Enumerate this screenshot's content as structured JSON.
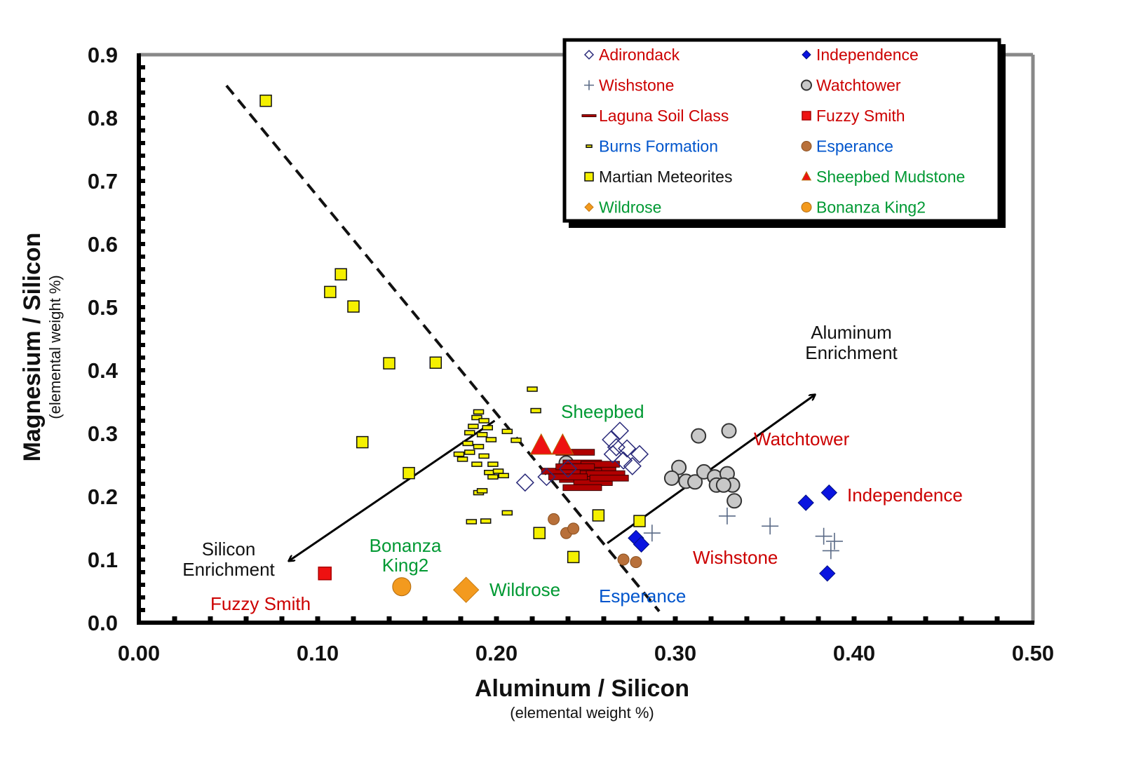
{
  "chart_data": {
    "type": "scatter",
    "xlabel": "Aluminum / Silicon",
    "xlabel_sub": "(elemental weight %)",
    "ylabel": "Magnesium / Silicon",
    "ylabel_sub": "(elemental weight %)",
    "xlim": [
      0,
      0.5
    ],
    "ylim": [
      0,
      0.9
    ],
    "x_ticks": [
      "0.00",
      "0.10",
      "0.20",
      "0.30",
      "0.40",
      "0.50"
    ],
    "y_ticks": [
      "0.0",
      "0.1",
      "0.2",
      "0.3",
      "0.4",
      "0.5",
      "0.6",
      "0.7",
      "0.8",
      "0.9"
    ],
    "minor_tick_step": 0.02,
    "grid": false,
    "legend_position": "top-right",
    "series": [
      {
        "name": "Adirondack",
        "marker": "diamond-open",
        "color": "#2a2a7a",
        "label_color": "#cc0000",
        "points": [
          [
            0.216,
            0.222
          ],
          [
            0.228,
            0.231
          ],
          [
            0.24,
            0.244
          ],
          [
            0.264,
            0.29
          ],
          [
            0.269,
            0.304
          ],
          [
            0.265,
            0.267
          ],
          [
            0.271,
            0.257
          ],
          [
            0.276,
            0.248
          ],
          [
            0.28,
            0.267
          ],
          [
            0.267,
            0.278
          ],
          [
            0.273,
            0.276
          ]
        ]
      },
      {
        "name": "Independence",
        "marker": "diamond",
        "color": "#0a14e0",
        "label_color": "#cc0000",
        "points": [
          [
            0.386,
            0.206
          ],
          [
            0.373,
            0.19
          ],
          [
            0.385,
            0.078
          ],
          [
            0.278,
            0.134
          ],
          [
            0.281,
            0.124
          ]
        ]
      },
      {
        "name": "Wishstone",
        "marker": "plus",
        "color": "#5a6a86",
        "label_color": "#cc0000",
        "points": [
          [
            0.287,
            0.142
          ],
          [
            0.329,
            0.169
          ],
          [
            0.353,
            0.153
          ],
          [
            0.383,
            0.137
          ],
          [
            0.389,
            0.129
          ],
          [
            0.387,
            0.114
          ]
        ]
      },
      {
        "name": "Watchtower",
        "marker": "circle",
        "color": "#c8c8c8",
        "label_color": "#cc0000",
        "points": [
          [
            0.313,
            0.296
          ],
          [
            0.33,
            0.304
          ],
          [
            0.302,
            0.246
          ],
          [
            0.298,
            0.229
          ],
          [
            0.306,
            0.224
          ],
          [
            0.311,
            0.223
          ],
          [
            0.316,
            0.239
          ],
          [
            0.322,
            0.231
          ],
          [
            0.329,
            0.236
          ],
          [
            0.332,
            0.218
          ],
          [
            0.323,
            0.218
          ],
          [
            0.327,
            0.218
          ],
          [
            0.333,
            0.193
          ],
          [
            0.239,
            0.253
          ]
        ]
      },
      {
        "name": "Laguna Soil Class",
        "marker": "bar",
        "color": "#b00000",
        "label_color": "#cc0000",
        "points": [
          [
            0.244,
            0.27
          ],
          [
            0.248,
            0.253
          ],
          [
            0.256,
            0.244
          ],
          [
            0.248,
            0.24
          ],
          [
            0.242,
            0.236
          ],
          [
            0.251,
            0.231
          ],
          [
            0.261,
            0.236
          ],
          [
            0.236,
            0.24
          ],
          [
            0.246,
            0.227
          ],
          [
            0.254,
            0.222
          ],
          [
            0.248,
            0.214
          ],
          [
            0.258,
            0.251
          ],
          [
            0.24,
            0.231
          ],
          [
            0.263,
            0.229
          ],
          [
            0.244,
            0.247
          ]
        ]
      },
      {
        "name": "Fuzzy Smith",
        "marker": "square",
        "color": "#ee1111",
        "label_color": "#cc0000",
        "points": [
          [
            0.104,
            0.078
          ]
        ]
      },
      {
        "name": "Burns Formation",
        "marker": "small-rect",
        "color": "#f5f000",
        "label_color": "#0055cc",
        "points": [
          [
            0.22,
            0.37
          ],
          [
            0.222,
            0.336
          ],
          [
            0.19,
            0.334
          ],
          [
            0.189,
            0.325
          ],
          [
            0.193,
            0.32
          ],
          [
            0.187,
            0.311
          ],
          [
            0.195,
            0.309
          ],
          [
            0.185,
            0.301
          ],
          [
            0.192,
            0.298
          ],
          [
            0.206,
            0.303
          ],
          [
            0.197,
            0.29
          ],
          [
            0.184,
            0.284
          ],
          [
            0.19,
            0.279
          ],
          [
            0.185,
            0.27
          ],
          [
            0.179,
            0.267
          ],
          [
            0.181,
            0.259
          ],
          [
            0.193,
            0.264
          ],
          [
            0.189,
            0.251
          ],
          [
            0.198,
            0.251
          ],
          [
            0.196,
            0.238
          ],
          [
            0.201,
            0.24
          ],
          [
            0.204,
            0.233
          ],
          [
            0.198,
            0.231
          ],
          [
            0.19,
            0.206
          ],
          [
            0.192,
            0.209
          ],
          [
            0.186,
            0.16
          ],
          [
            0.194,
            0.161
          ],
          [
            0.206,
            0.174
          ],
          [
            0.211,
            0.289
          ]
        ]
      },
      {
        "name": "Esperance",
        "marker": "circle-small",
        "color": "#b8703a",
        "label_color": "#0055cc",
        "points": [
          [
            0.232,
            0.164
          ],
          [
            0.239,
            0.142
          ],
          [
            0.243,
            0.149
          ],
          [
            0.271,
            0.1
          ],
          [
            0.278,
            0.096
          ]
        ]
      },
      {
        "name": "Martian Meteorites",
        "marker": "square",
        "color": "#f5f000",
        "label_color": "#111111",
        "points": [
          [
            0.071,
            0.827
          ],
          [
            0.113,
            0.552
          ],
          [
            0.107,
            0.524
          ],
          [
            0.12,
            0.501
          ],
          [
            0.14,
            0.411
          ],
          [
            0.166,
            0.412
          ],
          [
            0.125,
            0.286
          ],
          [
            0.151,
            0.237
          ],
          [
            0.257,
            0.17
          ],
          [
            0.28,
            0.161
          ],
          [
            0.224,
            0.142
          ],
          [
            0.243,
            0.104
          ]
        ]
      },
      {
        "name": "Sheepbed Mudstone",
        "marker": "triangle",
        "color": "#ee1111",
        "label_color": "#009933",
        "points": [
          [
            0.225,
            0.28
          ],
          [
            0.237,
            0.28
          ]
        ]
      },
      {
        "name": "Wildrose",
        "marker": "diamond-big",
        "color": "#f39a1e",
        "label_color": "#009933",
        "points": [
          [
            0.183,
            0.052
          ]
        ]
      },
      {
        "name": "Bonanza King2",
        "marker": "circle-big",
        "color": "#f39a1e",
        "label_color": "#009933",
        "points": [
          [
            0.147,
            0.057
          ]
        ]
      }
    ],
    "trend_line": {
      "style": "dashed",
      "from": [
        0.049,
        0.851
      ],
      "to": [
        0.291,
        0.018
      ]
    },
    "arrows": [
      {
        "label": "Silicon Enrichment",
        "from": [
          0.199,
          0.32
        ],
        "to": [
          0.084,
          0.098
        ]
      },
      {
        "label": "Aluminum Enrichment",
        "from": [
          0.262,
          0.126
        ],
        "to": [
          0.378,
          0.361
        ]
      }
    ],
    "annotations": {
      "silicon_1": "Silicon",
      "silicon_2": "Enrichment",
      "aluminum_1": "Aluminum",
      "aluminum_2": "Enrichment",
      "sheepbed": "Sheepbed",
      "watchtower": "Watchtower",
      "independence": "Independence",
      "wishstone": "Wishstone",
      "esperance": "Esperance",
      "bonanza_1": "Bonanza",
      "bonanza_2": "King2",
      "wildrose": "Wildrose",
      "fuzzy": "Fuzzy Smith"
    },
    "colors": {
      "red": "#cc0000",
      "green": "#009933",
      "blue": "#0055cc",
      "black": "#111111"
    }
  }
}
